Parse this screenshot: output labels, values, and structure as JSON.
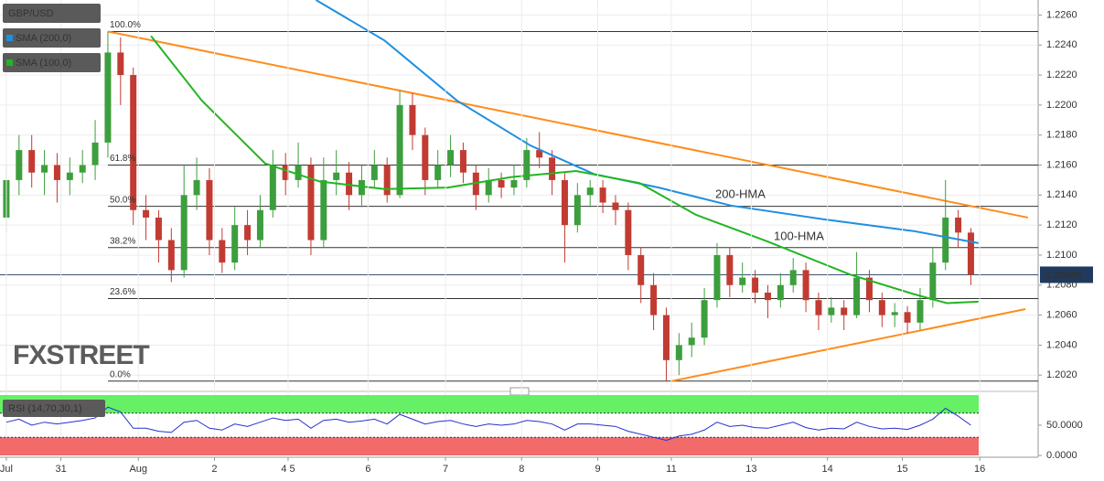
{
  "chart_data": [
    {
      "type": "candlestick",
      "title": "GBP/USD",
      "x": [
        0,
        1,
        2,
        3,
        4,
        5,
        6,
        7,
        8,
        9,
        10,
        11,
        12,
        13,
        14,
        15,
        16,
        17,
        18,
        19,
        20,
        21,
        22,
        23,
        24,
        25,
        26,
        27,
        28,
        29,
        30,
        31,
        32,
        33,
        34,
        35,
        36,
        37,
        38,
        39,
        40,
        41,
        42,
        43,
        44,
        45,
        46,
        47,
        48,
        49,
        50,
        51,
        52,
        53,
        54,
        55,
        56,
        57,
        58,
        59,
        60,
        61,
        62,
        63,
        64,
        65,
        66,
        67,
        68,
        69,
        70,
        71,
        72,
        73,
        74,
        75,
        76
      ],
      "open": [
        1.2125,
        1.215,
        1.217,
        1.2155,
        1.216,
        1.215,
        1.2155,
        1.216,
        1.2175,
        1.2235,
        1.222,
        1.213,
        1.2125,
        1.211,
        1.209,
        1.214,
        1.215,
        1.211,
        1.2095,
        1.212,
        1.211,
        1.213,
        1.216,
        1.215,
        1.216,
        1.211,
        1.215,
        1.2155,
        1.214,
        1.215,
        1.216,
        1.214,
        1.22,
        1.218,
        1.215,
        1.216,
        1.217,
        1.2155,
        1.214,
        1.215,
        1.2145,
        1.215,
        1.217,
        1.2165,
        1.215,
        1.212,
        1.214,
        1.2145,
        1.2135,
        1.213,
        1.21,
        1.208,
        1.206,
        1.203,
        1.204,
        1.2045,
        1.207,
        1.21,
        1.208,
        1.2085,
        1.2075,
        1.207,
        1.208,
        1.209,
        1.207,
        1.206,
        1.2065,
        1.206,
        1.2085,
        1.207,
        1.206,
        1.2062,
        1.2055,
        1.207,
        1.2095,
        1.2125,
        1.2115
      ],
      "high": [
        1.216,
        1.218,
        1.218,
        1.217,
        1.2168,
        1.2165,
        1.217,
        1.219,
        1.2249,
        1.2245,
        1.2225,
        1.214,
        1.213,
        1.2118,
        1.216,
        1.2165,
        1.2158,
        1.2118,
        1.2132,
        1.213,
        1.214,
        1.217,
        1.2168,
        1.2175,
        1.2165,
        1.2165,
        1.217,
        1.2162,
        1.216,
        1.217,
        1.2165,
        1.221,
        1.2208,
        1.2185,
        1.217,
        1.218,
        1.2175,
        1.216,
        1.2158,
        1.2155,
        1.216,
        1.2178,
        1.2182,
        1.217,
        1.2155,
        1.2148,
        1.215,
        1.215,
        1.214,
        1.2135,
        1.2105,
        1.2088,
        1.2065,
        1.2048,
        1.2055,
        1.2078,
        1.2108,
        1.2105,
        1.2095,
        1.209,
        1.208,
        1.2088,
        1.2098,
        1.2095,
        1.2075,
        1.2072,
        1.207,
        1.2102,
        1.209,
        1.2075,
        1.2068,
        1.2066,
        1.2078,
        1.2105,
        1.215,
        1.213,
        1.2118
      ],
      "low": [
        1.2115,
        1.214,
        1.2145,
        1.214,
        1.2135,
        1.214,
        1.2148,
        1.215,
        1.2165,
        1.22,
        1.212,
        1.211,
        1.2095,
        1.2082,
        1.2085,
        1.213,
        1.21,
        1.2088,
        1.209,
        1.21,
        1.2105,
        1.2125,
        1.214,
        1.2145,
        1.21,
        1.2105,
        1.214,
        1.213,
        1.2132,
        1.2145,
        1.2135,
        1.2138,
        1.217,
        1.214,
        1.2145,
        1.2152,
        1.2148,
        1.213,
        1.2135,
        1.2138,
        1.214,
        1.2145,
        1.2158,
        1.214,
        1.2095,
        1.2115,
        1.2132,
        1.2128,
        1.212,
        1.209,
        1.2068,
        1.205,
        1.2016,
        1.202,
        1.2032,
        1.204,
        1.2065,
        1.2072,
        1.2075,
        1.2068,
        1.2058,
        1.2065,
        1.2075,
        1.2062,
        1.205,
        1.2055,
        1.205,
        1.2058,
        1.2062,
        1.2052,
        1.2052,
        1.2048,
        1.205,
        1.2065,
        1.209,
        1.2105,
        1.208
      ],
      "close": [
        1.215,
        1.217,
        1.2155,
        1.216,
        1.215,
        1.2155,
        1.216,
        1.2175,
        1.2235,
        1.222,
        1.213,
        1.2125,
        1.211,
        1.209,
        1.214,
        1.215,
        1.211,
        1.2095,
        1.212,
        1.211,
        1.213,
        1.216,
        1.215,
        1.216,
        1.211,
        1.215,
        1.2155,
        1.214,
        1.215,
        1.216,
        1.214,
        1.22,
        1.218,
        1.215,
        1.216,
        1.217,
        1.2155,
        1.214,
        1.215,
        1.2145,
        1.215,
        1.217,
        1.2165,
        1.215,
        1.212,
        1.214,
        1.2145,
        1.2135,
        1.213,
        1.21,
        1.208,
        1.206,
        1.203,
        1.204,
        1.2045,
        1.207,
        1.21,
        1.208,
        1.2085,
        1.2075,
        1.207,
        1.208,
        1.209,
        1.207,
        1.206,
        1.2065,
        1.206,
        1.2085,
        1.207,
        1.206,
        1.2062,
        1.2055,
        1.207,
        1.2095,
        1.2125,
        1.2115,
        1.2087
      ],
      "up_color": "#3d9e3d",
      "down_color": "#c23b32",
      "xlim": [
        -0.5,
        81.3
      ],
      "ylim": [
        1.2011,
        1.227
      ],
      "xticks": [
        {
          "value": 0,
          "label": "Jul"
        },
        {
          "value": 4.3,
          "label": "31"
        },
        {
          "value": 10.4,
          "label": "Aug"
        },
        {
          "value": 16.4,
          "label": "2"
        },
        {
          "value": 22.2,
          "label": "4 5"
        },
        {
          "value": 28.5,
          "label": "6"
        },
        {
          "value": 34.6,
          "label": "7"
        },
        {
          "value": 40.6,
          "label": "8"
        },
        {
          "value": 46.6,
          "label": "9"
        },
        {
          "value": 52.4,
          "label": "11"
        },
        {
          "value": 58.7,
          "label": "13"
        },
        {
          "value": 64.7,
          "label": "14"
        },
        {
          "value": 70.6,
          "label": "15"
        },
        {
          "value": 76.7,
          "label": "16"
        }
      ],
      "yticks": [
        {
          "value": 1.202,
          "label": "1.2020"
        },
        {
          "value": 1.204,
          "label": "1.2040"
        },
        {
          "value": 1.206,
          "label": "1.2060"
        },
        {
          "value": 1.208,
          "label": "1.2080"
        },
        {
          "value": 1.21,
          "label": "1.2100"
        },
        {
          "value": 1.212,
          "label": "1.2120"
        },
        {
          "value": 1.214,
          "label": "1.2140"
        },
        {
          "value": 1.216,
          "label": "1.2160"
        },
        {
          "value": 1.218,
          "label": "1.2180"
        },
        {
          "value": 1.22,
          "label": "1.2200"
        },
        {
          "value": 1.222,
          "label": "1.2220"
        },
        {
          "value": 1.224,
          "label": "1.2240"
        },
        {
          "value": 1.226,
          "label": "1.2260"
        }
      ],
      "grid": true,
      "last_price": 1.20869,
      "last_price_color": "#1f3a5c",
      "series": [
        {
          "name": "SMA (200,0)",
          "label": "200-HMA",
          "color": "#1f8fe0",
          "x": [
            24.4,
            29.8,
            35.5,
            41.3,
            46.3,
            51.4,
            57.1,
            64.3,
            71.5,
            76.6
          ],
          "values": [
            1.227,
            1.2243,
            1.2203,
            1.2173,
            1.2154,
            1.2145,
            1.2133,
            1.2124,
            1.2116,
            1.2108
          ]
        },
        {
          "name": "SMA (100,0)",
          "label": "100-HMA",
          "color": "#22b522",
          "x": [
            11.4,
            15.4,
            20.4,
            24.7,
            29.8,
            34.8,
            39.8,
            44.9,
            49.9,
            54.3,
            60,
            66.5,
            71.5,
            74.1,
            76.6
          ],
          "values": [
            1.2246,
            1.2203,
            1.2161,
            1.2149,
            1.2144,
            1.2145,
            1.2152,
            1.2156,
            1.2148,
            1.2127,
            1.2109,
            1.2087,
            1.2074,
            1.2068,
            1.2069
          ]
        }
      ],
      "trendline_color": "#ff8c1a",
      "trendlines": [
        {
          "x": [
            8,
            80.5
          ],
          "values": [
            1.2249,
            1.2125
          ]
        },
        {
          "x": [
            52.4,
            80.3
          ],
          "values": [
            1.2016,
            1.2064
          ]
        }
      ],
      "fib_levels": [
        {
          "label": "100.0%",
          "value": 1.2249
        },
        {
          "label": "61.8%",
          "value": 1.216
        },
        {
          "label": "50.0%",
          "value": 1.21325
        },
        {
          "label": "38.2%",
          "value": 1.2105
        },
        {
          "label": "23.6%",
          "value": 1.2071
        },
        {
          "label": "0.0%",
          "value": 1.2016
        }
      ],
      "watermark": "FXSTREET"
    },
    {
      "type": "line",
      "title": "RSI (14,70,30,1)",
      "color": "#2233cc",
      "values": [
        55,
        60,
        50,
        55,
        52,
        55,
        58,
        62,
        80,
        72,
        45,
        45,
        40,
        38,
        55,
        58,
        45,
        42,
        52,
        48,
        55,
        62,
        58,
        60,
        45,
        58,
        60,
        55,
        57,
        60,
        52,
        68,
        60,
        52,
        56,
        58,
        52,
        48,
        52,
        50,
        52,
        58,
        56,
        52,
        42,
        52,
        52,
        50,
        48,
        40,
        35,
        30,
        25,
        32,
        35,
        42,
        55,
        48,
        50,
        46,
        45,
        50,
        55,
        46,
        42,
        45,
        44,
        55,
        48,
        44,
        45,
        43,
        50,
        60,
        78,
        65,
        50
      ],
      "ylim": [
        0,
        100
      ],
      "yticks": [
        {
          "value": 50,
          "label": "50.0000"
        },
        {
          "value": 0,
          "label": "0.0000"
        }
      ],
      "overbought": 70,
      "oversold": 30,
      "overbought_color": "#66f066",
      "oversold_color": "#f26a6a"
    }
  ]
}
